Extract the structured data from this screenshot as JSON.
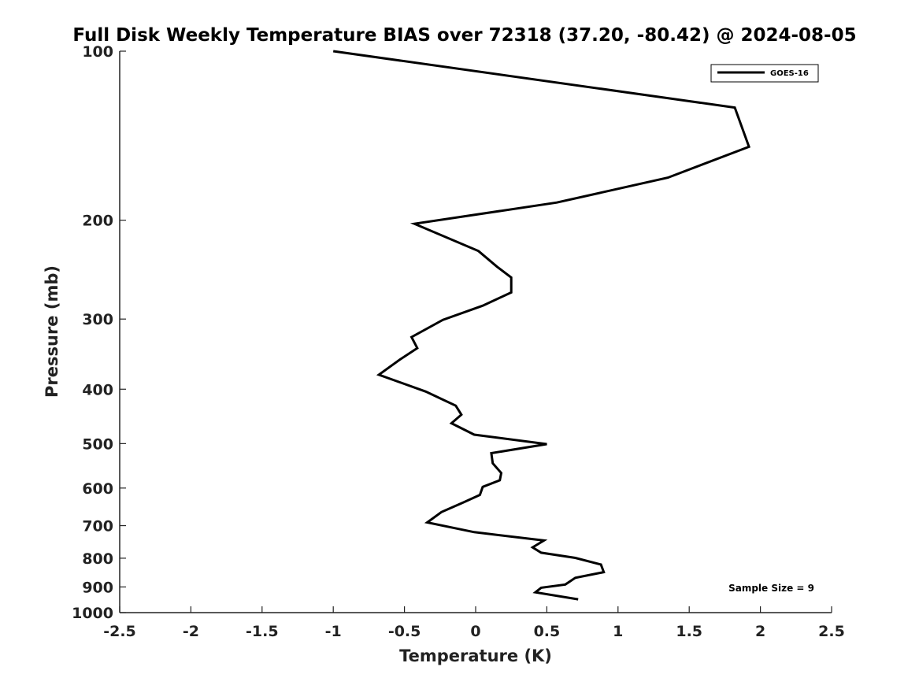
{
  "chart_data": {
    "type": "line",
    "title": "Full Disk Weekly Temperature BIAS over 72318 (37.20, -80.42) @ 2024-08-05",
    "xlabel": "Temperature (K)",
    "ylabel": "Pressure (mb)",
    "xlim": [
      -2.5,
      2.5
    ],
    "ylim": [
      100,
      1000
    ],
    "yscale": "log",
    "y_reversed": true,
    "xticks": [
      -2.5,
      -2,
      -1.5,
      -1,
      -0.5,
      0,
      0.5,
      1,
      1.5,
      2,
      2.5
    ],
    "xtick_labels": [
      "-2.5",
      "-2",
      "-1.5",
      "-1",
      "-0.5",
      "0",
      "0.5",
      "1",
      "1.5",
      "2",
      "2.5"
    ],
    "yticks": [
      100,
      200,
      300,
      400,
      500,
      600,
      700,
      800,
      900,
      1000
    ],
    "ytick_labels": [
      "100",
      "200",
      "300",
      "400",
      "500",
      "600",
      "700",
      "800",
      "900",
      "1000"
    ],
    "grid": false,
    "legend_position": "top-right",
    "annotation": "Sample Size = 9",
    "series": [
      {
        "name": "GOES-16",
        "color": "#000000",
        "points": [
          {
            "x": -1.0,
            "y": 100
          },
          {
            "x": 1.82,
            "y": 126
          },
          {
            "x": 1.92,
            "y": 148
          },
          {
            "x": 1.35,
            "y": 168
          },
          {
            "x": 0.57,
            "y": 186
          },
          {
            "x": -0.43,
            "y": 203
          },
          {
            "x": 0.02,
            "y": 227
          },
          {
            "x": 0.15,
            "y": 242
          },
          {
            "x": 0.25,
            "y": 253
          },
          {
            "x": 0.25,
            "y": 269
          },
          {
            "x": 0.05,
            "y": 284
          },
          {
            "x": -0.23,
            "y": 301
          },
          {
            "x": -0.45,
            "y": 323
          },
          {
            "x": -0.41,
            "y": 338
          },
          {
            "x": -0.53,
            "y": 354
          },
          {
            "x": -0.68,
            "y": 377
          },
          {
            "x": -0.35,
            "y": 404
          },
          {
            "x": -0.14,
            "y": 428
          },
          {
            "x": -0.1,
            "y": 444
          },
          {
            "x": -0.17,
            "y": 460
          },
          {
            "x": -0.01,
            "y": 482
          },
          {
            "x": 0.5,
            "y": 501
          },
          {
            "x": 0.11,
            "y": 520
          },
          {
            "x": 0.12,
            "y": 542
          },
          {
            "x": 0.18,
            "y": 564
          },
          {
            "x": 0.17,
            "y": 581
          },
          {
            "x": 0.05,
            "y": 597
          },
          {
            "x": 0.03,
            "y": 617
          },
          {
            "x": -0.09,
            "y": 637
          },
          {
            "x": -0.24,
            "y": 662
          },
          {
            "x": -0.34,
            "y": 691
          },
          {
            "x": -0.01,
            "y": 719
          },
          {
            "x": 0.48,
            "y": 744
          },
          {
            "x": 0.4,
            "y": 765
          },
          {
            "x": 0.46,
            "y": 782
          },
          {
            "x": 0.7,
            "y": 799
          },
          {
            "x": 0.88,
            "y": 821
          },
          {
            "x": 0.9,
            "y": 847
          },
          {
            "x": 0.7,
            "y": 867
          },
          {
            "x": 0.63,
            "y": 891
          },
          {
            "x": 0.46,
            "y": 903
          },
          {
            "x": 0.42,
            "y": 920
          },
          {
            "x": 0.72,
            "y": 947
          }
        ]
      }
    ]
  }
}
